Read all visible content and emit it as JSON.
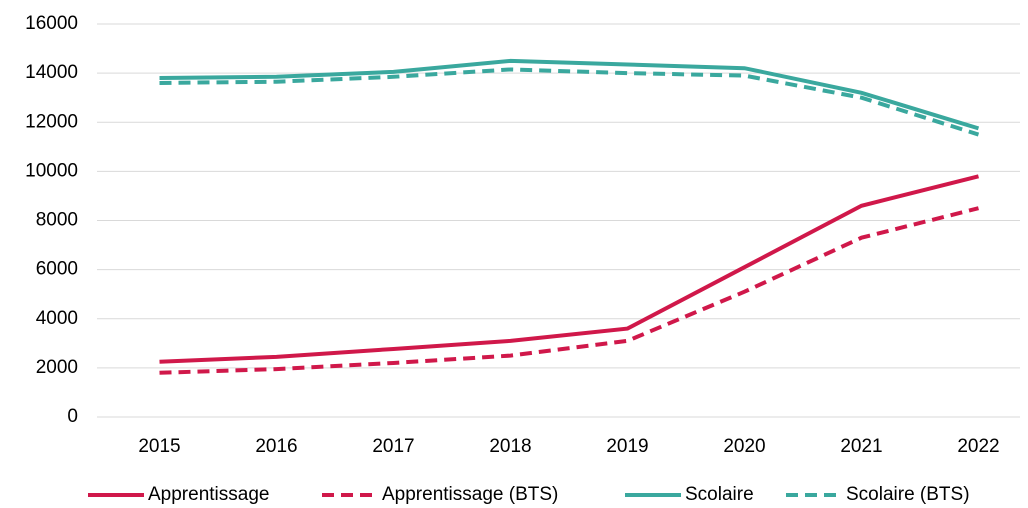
{
  "chart_data": {
    "type": "line",
    "categories": [
      "2015",
      "2016",
      "2017",
      "2018",
      "2019",
      "2020",
      "2021",
      "2022"
    ],
    "series": [
      {
        "name": "Apprentissage",
        "color": "#d0184a",
        "dashed": false,
        "values": [
          2250,
          2450,
          2770,
          3100,
          3600,
          6100,
          8600,
          9800
        ]
      },
      {
        "name": "Apprentissage (BTS)",
        "color": "#d0184a",
        "dashed": true,
        "values": [
          1800,
          1950,
          2200,
          2500,
          3100,
          5100,
          7300,
          8500
        ]
      },
      {
        "name": "Scolaire",
        "color": "#3aa89e",
        "dashed": false,
        "values": [
          13800,
          13850,
          14050,
          14500,
          14350,
          14200,
          13200,
          11750
        ]
      },
      {
        "name": "Scolaire (BTS)",
        "color": "#3aa89e",
        "dashed": true,
        "values": [
          13600,
          13650,
          13850,
          14150,
          14000,
          13900,
          13000,
          11500
        ]
      }
    ],
    "ylim": [
      0,
      16000
    ],
    "yticks": [
      0,
      2000,
      4000,
      6000,
      8000,
      10000,
      12000,
      14000,
      16000
    ],
    "grid": true,
    "legend": "bottom"
  }
}
